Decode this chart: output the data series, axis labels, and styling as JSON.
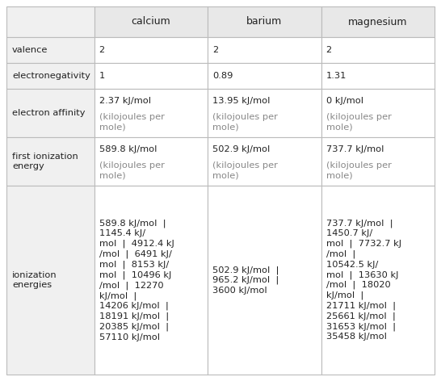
{
  "columns": [
    "",
    "calcium",
    "barium",
    "magnesium"
  ],
  "rows": [
    {
      "label": "valence",
      "calcium": "2",
      "barium": "2",
      "magnesium": "2"
    },
    {
      "label": "electronegativity",
      "calcium": "1",
      "barium": "0.89",
      "magnesium": "1.31"
    },
    {
      "label": "electron affinity",
      "calcium": "2.37 kJ/mol\n(kilojoules per\nmole)",
      "barium": "13.95 kJ/mol\n(kilojoules per\nmole)",
      "magnesium": "0 kJ/mol\n(kilojoules per\nmole)"
    },
    {
      "label": "first ionization\nenergy",
      "calcium": "589.8 kJ/mol\n(kilojoules per\nmole)",
      "barium": "502.9 kJ/mol\n(kilojoules per\nmole)",
      "magnesium": "737.7 kJ/mol\n(kilojoules per\nmole)"
    },
    {
      "label": "ionization\nenergies",
      "calcium": "589.8 kJ/mol  |\n1145.4 kJ/\nmol  |  4912.4 kJ\n/mol  |  6491 kJ/\nmol  |  8153 kJ/\nmol  |  10496 kJ\n/mol  |  12270\nkJ/mol  |\n14206 kJ/mol  |\n18191 kJ/mol  |\n20385 kJ/mol  |\n57110 kJ/mol",
      "barium": "502.9 kJ/mol  |\n965.2 kJ/mol  |\n3600 kJ/mol",
      "magnesium": "737.7 kJ/mol  |\n1450.7 kJ/\nmol  |  7732.7 kJ\n/mol  |\n10542.5 kJ/\nmol  |  13630 kJ\n/mol  |  18020\nkJ/mol  |\n21711 kJ/mol  |\n25661 kJ/mol  |\n31653 kJ/mol  |\n35458 kJ/mol"
    }
  ],
  "header_bg": "#e8e8e8",
  "label_bg": "#f0f0f0",
  "data_bg": "#ffffff",
  "border_color": "#bbbbbb",
  "text_color": "#222222",
  "subtext_color": "#888888",
  "header_font_size": 9.0,
  "cell_font_size": 8.2,
  "label_font_size": 8.2,
  "background_color": "#ffffff",
  "fig_width": 5.46,
  "fig_height": 4.72,
  "dpi": 100
}
